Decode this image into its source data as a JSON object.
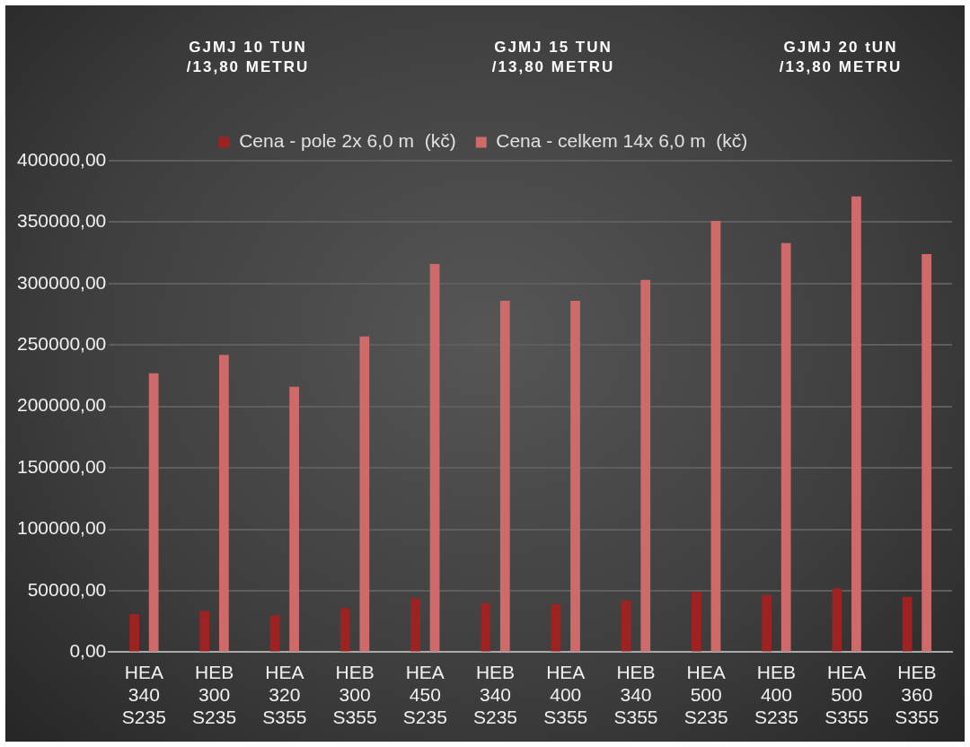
{
  "chart_data": {
    "type": "bar",
    "annotations": [
      "GJMJ 10 TUN /13,80 METRU",
      "GJMJ 15 TUN /13,80 METRU",
      "GJMJ 20 tUN /13,80 METRU"
    ],
    "categories": [
      "HEA 340 S235",
      "HEB 300 S235",
      "HEA 320 S355",
      "HEB 300 S355",
      "HEA 450 S235",
      "HEB 340 S235",
      "HEA 400 S355",
      "HEB 340 S355",
      "HEA 500 S235",
      "HEB 400 S235",
      "HEA 500 S355",
      "HEB 360 S355"
    ],
    "series": [
      {
        "name": "Cena - pole 2x 6,0 m  (kč)",
        "color": "#9e2222",
        "values": [
          31000,
          33500,
          30000,
          36000,
          44000,
          40000,
          39000,
          42000,
          49000,
          46500,
          52000,
          45000
        ]
      },
      {
        "name": "Cena - celkem 14x 6,0 m  (kč)",
        "color": "#cf6a6a",
        "values": [
          227000,
          242000,
          216000,
          257000,
          316000,
          286000,
          286000,
          303000,
          351000,
          333000,
          371000,
          324000
        ]
      }
    ],
    "ylim": [
      0,
      400000
    ],
    "yticks": [
      {
        "value": 0,
        "label": "0,00"
      },
      {
        "value": 50000,
        "label": "50000,00"
      },
      {
        "value": 100000,
        "label": "100000,00"
      },
      {
        "value": 150000,
        "label": "150000,00"
      },
      {
        "value": 200000,
        "label": "200000,00"
      },
      {
        "value": 250000,
        "label": "250000,00"
      },
      {
        "value": 300000,
        "label": "300000,00"
      },
      {
        "value": 350000,
        "label": "350000,00"
      },
      {
        "value": 400000,
        "label": "400000,00"
      }
    ],
    "grid": "y",
    "legend": "top"
  }
}
